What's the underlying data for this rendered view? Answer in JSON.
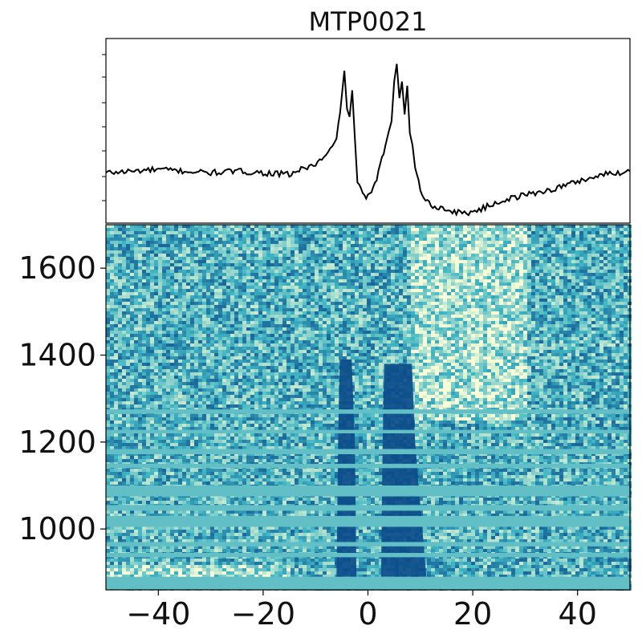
{
  "chart_data": [
    {
      "type": "line",
      "title": "MTP0021",
      "xlabel": "",
      "ylabel": "",
      "xlim": [
        -50,
        50
      ],
      "y_tick_labels_visible": false,
      "line_color": "#000000",
      "x": [
        -50,
        -45,
        -40,
        -35,
        -30,
        -25,
        -20,
        -15,
        -12,
        -10,
        -8,
        -6,
        -5,
        -4.5,
        -4,
        -3.5,
        -3,
        -2.5,
        -2,
        -1,
        0,
        1,
        2,
        3,
        4,
        4.5,
        5,
        5.5,
        6,
        6.5,
        7,
        7.5,
        8,
        8.5,
        9,
        10,
        11,
        12,
        15,
        18,
        20,
        22,
        25,
        30,
        35,
        40,
        45,
        50
      ],
      "y": [
        0.26,
        0.27,
        0.28,
        0.27,
        0.26,
        0.27,
        0.26,
        0.25,
        0.29,
        0.31,
        0.36,
        0.45,
        0.72,
        0.85,
        0.65,
        0.6,
        0.74,
        0.48,
        0.2,
        0.13,
        0.12,
        0.16,
        0.26,
        0.38,
        0.52,
        0.58,
        0.82,
        0.9,
        0.72,
        0.8,
        0.62,
        0.76,
        0.5,
        0.42,
        0.3,
        0.16,
        0.1,
        0.07,
        0.04,
        0.02,
        0.03,
        0.05,
        0.09,
        0.13,
        0.16,
        0.21,
        0.25,
        0.27
      ],
      "y_range": [
        0,
        1
      ]
    },
    {
      "type": "heatmap",
      "title": "",
      "xlabel": "",
      "ylabel": "",
      "xlim": [
        -50,
        50
      ],
      "ylim": [
        860,
        1700
      ],
      "x_ticks": [
        "−40",
        "−20",
        "0",
        "20",
        "40"
      ],
      "y_ticks": [
        "1000",
        "1200",
        "1400",
        "1600"
      ],
      "colormap": "YlGnBu",
      "colors": {
        "low": "#f7fcd6",
        "mid": "#41b6c4",
        "high": "#0c4c8a",
        "mask": "#63bfc6"
      },
      "masked_bands_y": [
        [
          870,
          890
        ],
        [
          935,
          945
        ],
        [
          960,
          970
        ],
        [
          1005,
          1030
        ],
        [
          1042,
          1055
        ],
        [
          1075,
          1100
        ],
        [
          1140,
          1150
        ],
        [
          1172,
          1184
        ],
        [
          1220,
          1228
        ],
        [
          1265,
          1275
        ]
      ],
      "dark_ridges_x": [
        [
          -6,
          -2.5
        ],
        [
          2.5,
          9
        ]
      ],
      "bright_region": {
        "x": [
          8,
          30
        ],
        "y": [
          1250,
          1700
        ]
      }
    }
  ]
}
